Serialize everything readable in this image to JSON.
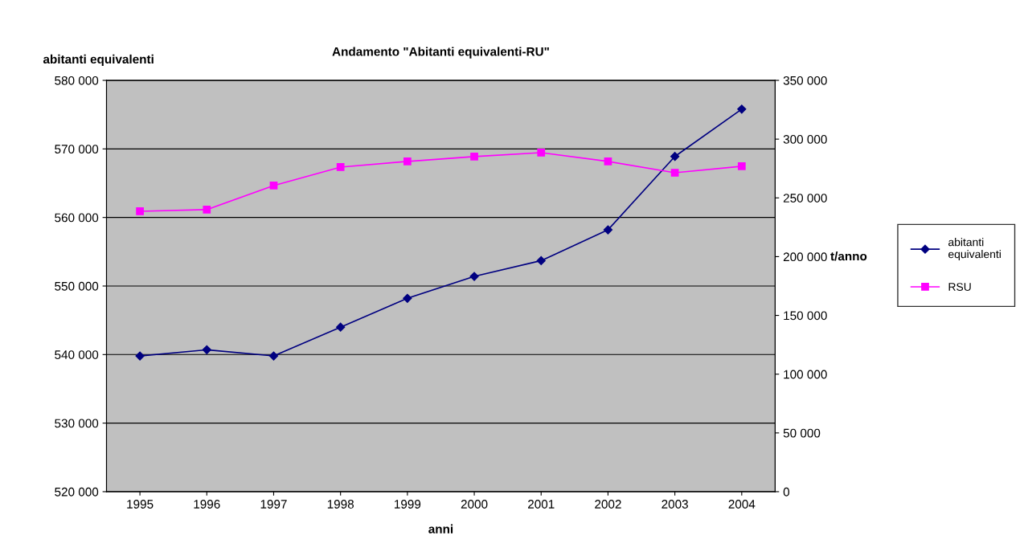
{
  "chart_data": {
    "type": "line",
    "title": "Andamento \"Abitanti equivalenti-RU\"",
    "xlabel": "anni",
    "ylabel": "abitanti equivalenti",
    "y2label": "t/anno",
    "categories": [
      "1995",
      "1996",
      "1997",
      "1998",
      "1999",
      "2000",
      "2001",
      "2002",
      "2003",
      "2004"
    ],
    "series": [
      {
        "name": "abitanti equivalenti",
        "color": "#000080",
        "marker": "diamond",
        "values": [
          539800,
          540700,
          539800,
          544000,
          548200,
          551400,
          553700,
          558200,
          568900,
          575800
        ]
      },
      {
        "name": "RSU",
        "color": "#ff00ff",
        "marker": "square",
        "axis": "y2",
        "values": [
          238600,
          240000,
          260500,
          276200,
          281000,
          285100,
          288500,
          281000,
          271400,
          276900
        ]
      }
    ],
    "ylim": [
      520000,
      580000
    ],
    "yticks": [
      {
        "value": 520000,
        "label": "520 000"
      },
      {
        "value": 530000,
        "label": "530 000"
      },
      {
        "value": 540000,
        "label": "540 000"
      },
      {
        "value": 550000,
        "label": "550 000"
      },
      {
        "value": 560000,
        "label": "560 000"
      },
      {
        "value": 570000,
        "label": "570 000"
      },
      {
        "value": 580000,
        "label": "580 000"
      }
    ],
    "y2lim": [
      0,
      350000
    ],
    "y2ticks": [
      0,
      {
        "value": 50000,
        "label": "50 000"
      },
      {
        "value": 100000,
        "label": "100 000"
      },
      {
        "value": 150000,
        "label": "150 000"
      },
      {
        "value": 200000,
        "label": "200 000"
      },
      {
        "value": 250000,
        "label": "250 000"
      },
      {
        "value": 300000,
        "label": "300 000"
      },
      {
        "value": 350000,
        "label": "350 000"
      }
    ],
    "grid": "y",
    "legend": "right",
    "line_style": "solid"
  }
}
